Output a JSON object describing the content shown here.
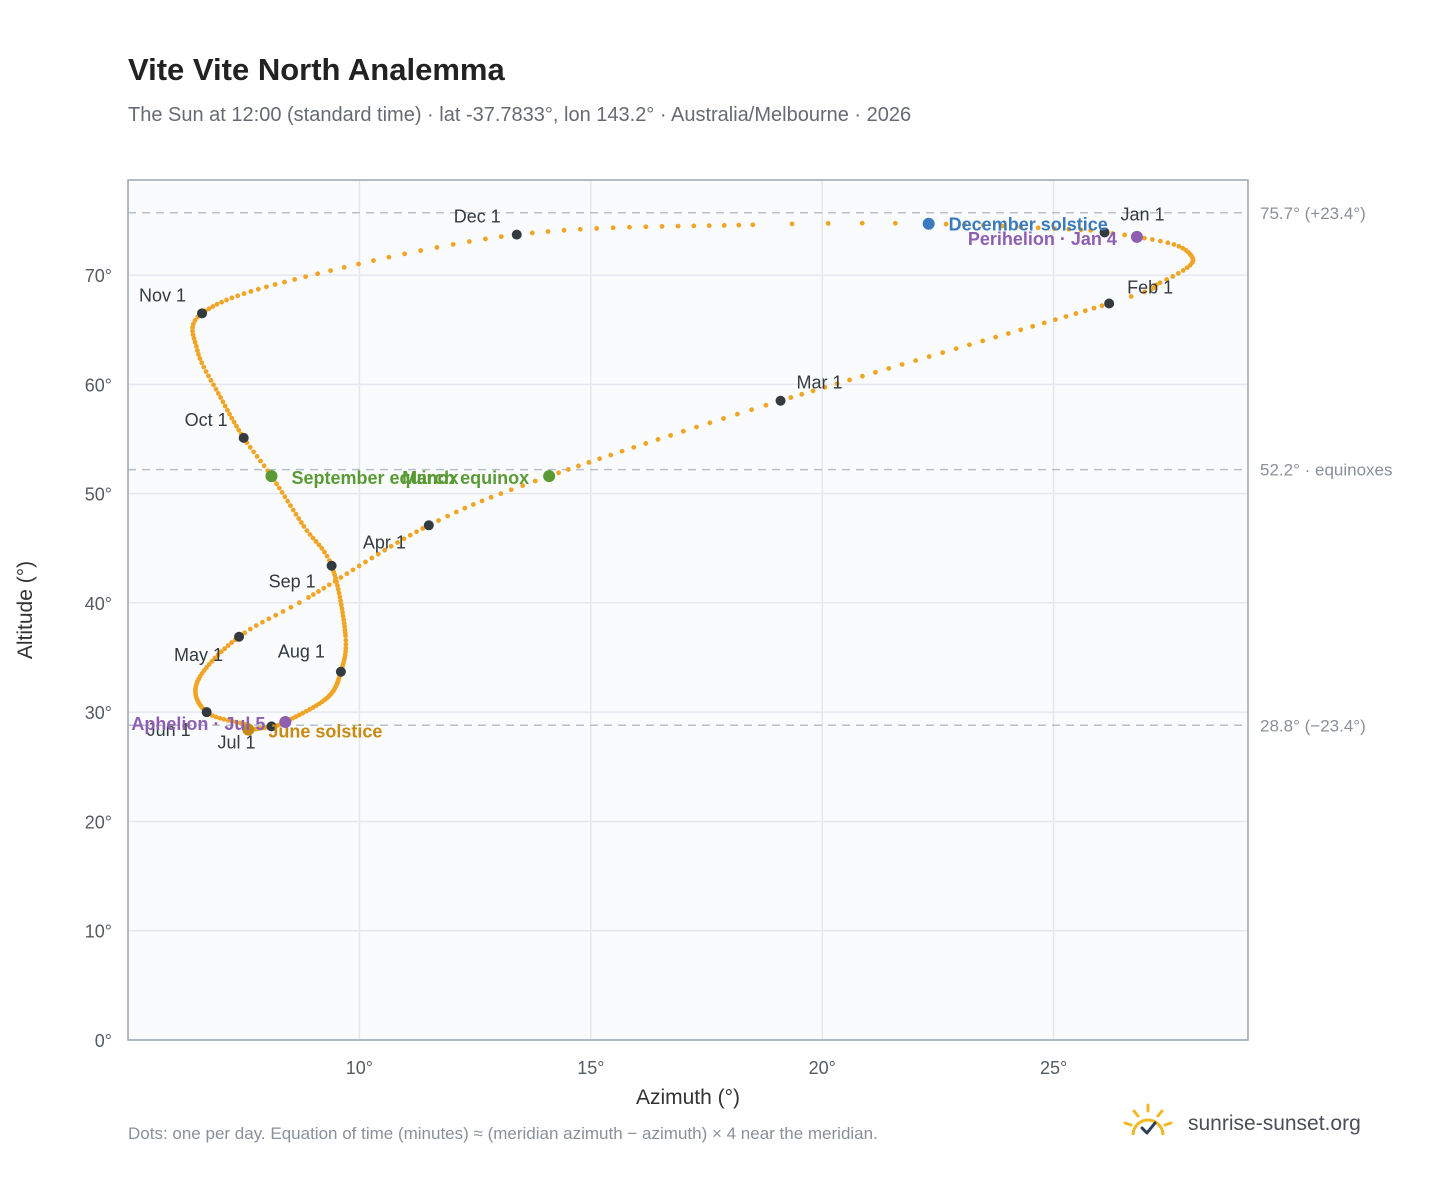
{
  "title": "Vite Vite North Analemma",
  "subtitle": "The Sun at 12:00 (standard time) · lat -37.7833°, lon 143.2° · Australia/Melbourne · 2026",
  "footnote": "Dots: one per day. Equation of time (minutes) ≈ (meridian azimuth − azimuth) × 4 near the meridian.",
  "brand": {
    "name": "sunrise-sunset.org",
    "logo_icon": "sun-icon"
  },
  "colors": {
    "curve": "#f0a526",
    "month_marker": "#333a40",
    "solstice_dec": "#3a7abd",
    "solstice_jun": "#c58b12",
    "equinox": "#5a9a34",
    "apsis": "#8e5fb0",
    "plot_bg": "#f9fbfd",
    "grid": "#e4e8ee",
    "ref_line": "#b7c0c9"
  },
  "chart_data": {
    "type": "scatter",
    "title": "Vite Vite North Analemma",
    "xlabel": "Azimuth (°)",
    "ylabel": "Altitude (°)",
    "xlim": [
      5,
      29.2
    ],
    "ylim": [
      0,
      78.7
    ],
    "xticks": [
      10,
      15,
      20,
      25
    ],
    "xtick_labels": [
      "10°",
      "15°",
      "20°",
      "25°"
    ],
    "yticks": [
      0,
      10,
      20,
      30,
      40,
      50,
      60,
      70
    ],
    "ytick_labels": [
      "0°",
      "10°",
      "20°",
      "30°",
      "40°",
      "50°",
      "60°",
      "70°"
    ],
    "grid": true,
    "reference_lines": [
      {
        "y": 75.7,
        "label": "75.7° (+23.4°)"
      },
      {
        "y": 52.2,
        "label": "52.2° · equinoxes"
      },
      {
        "y": 28.8,
        "label": "28.8° (−23.4°)"
      }
    ],
    "daily_path": [
      {
        "day": 1,
        "x": 26.1,
        "y": 73.9
      },
      {
        "day": 4,
        "x": 26.8,
        "y": 73.5
      },
      {
        "day": 9,
        "x": 27.6,
        "y": 72.8
      },
      {
        "day": 14,
        "x": 27.95,
        "y": 71.9
      },
      {
        "day": 19,
        "x": 27.95,
        "y": 70.9
      },
      {
        "day": 25,
        "x": 27.3,
        "y": 69.3
      },
      {
        "day": 32,
        "x": 26.2,
        "y": 67.4
      },
      {
        "day": 60,
        "x": 19.1,
        "y": 58.5
      },
      {
        "day": 79,
        "x": 14.1,
        "y": 51.6
      },
      {
        "day": 91,
        "x": 11.5,
        "y": 47.1
      },
      {
        "day": 111,
        "x": 8.9,
        "y": 40.5
      },
      {
        "day": 121,
        "x": 7.4,
        "y": 36.9
      },
      {
        "day": 136,
        "x": 6.5,
        "y": 32.8
      },
      {
        "day": 152,
        "x": 6.7,
        "y": 30.0
      },
      {
        "day": 164,
        "x": 7.6,
        "y": 28.8
      },
      {
        "day": 172,
        "x": 7.6,
        "y": 28.4
      },
      {
        "day": 182,
        "x": 8.1,
        "y": 28.7
      },
      {
        "day": 186,
        "x": 8.4,
        "y": 29.1
      },
      {
        "day": 200,
        "x": 9.3,
        "y": 31.3
      },
      {
        "day": 213,
        "x": 9.6,
        "y": 33.7
      },
      {
        "day": 224,
        "x": 9.7,
        "y": 37.0
      },
      {
        "day": 244,
        "x": 9.4,
        "y": 43.4
      },
      {
        "day": 254,
        "x": 8.8,
        "y": 47.0
      },
      {
        "day": 266,
        "x": 8.1,
        "y": 51.6
      },
      {
        "day": 274,
        "x": 7.5,
        "y": 55.1
      },
      {
        "day": 284,
        "x": 7.0,
        "y": 58.8
      },
      {
        "day": 295,
        "x": 6.5,
        "y": 63.1
      },
      {
        "day": 305,
        "x": 6.6,
        "y": 66.5
      },
      {
        "day": 320,
        "x": 8.6,
        "y": 69.6
      },
      {
        "day": 335,
        "x": 13.4,
        "y": 73.7
      },
      {
        "day": 350,
        "x": 18.5,
        "y": 74.6
      },
      {
        "day": 355,
        "x": 22.3,
        "y": 74.7
      },
      {
        "day": 365,
        "x": 25.8,
        "y": 74.1
      }
    ],
    "month_markers": [
      {
        "label": "Jan 1",
        "x": 26.1,
        "y": 73.9
      },
      {
        "label": "Feb 1",
        "x": 26.2,
        "y": 67.4
      },
      {
        "label": "Mar 1",
        "x": 19.1,
        "y": 58.5
      },
      {
        "label": "Apr 1",
        "x": 11.5,
        "y": 47.1
      },
      {
        "label": "May 1",
        "x": 7.4,
        "y": 36.9
      },
      {
        "label": "Jun 1",
        "x": 6.7,
        "y": 30.0
      },
      {
        "label": "Jul 1",
        "x": 8.1,
        "y": 28.7
      },
      {
        "label": "Aug 1",
        "x": 9.6,
        "y": 33.7
      },
      {
        "label": "Sep 1",
        "x": 9.4,
        "y": 43.4
      },
      {
        "label": "Oct 1",
        "x": 7.5,
        "y": 55.1
      },
      {
        "label": "Nov 1",
        "x": 6.6,
        "y": 66.5
      },
      {
        "label": "Dec 1",
        "x": 13.4,
        "y": 73.7
      }
    ],
    "events": [
      {
        "label": "December solstice",
        "x": 22.3,
        "y": 74.7,
        "kind": "solstice_dec"
      },
      {
        "label": "Perihelion · Jan 4",
        "x": 26.8,
        "y": 73.5,
        "kind": "apsis"
      },
      {
        "label": "March equinox",
        "x": 14.1,
        "y": 51.6,
        "kind": "equinox"
      },
      {
        "label": "September equinox",
        "x": 8.1,
        "y": 51.6,
        "kind": "equinox"
      },
      {
        "label": "June solstice",
        "x": 7.6,
        "y": 28.4,
        "kind": "solstice_jun"
      },
      {
        "label": "Aphelion · Jul 5",
        "x": 8.4,
        "y": 29.1,
        "kind": "apsis"
      }
    ]
  }
}
